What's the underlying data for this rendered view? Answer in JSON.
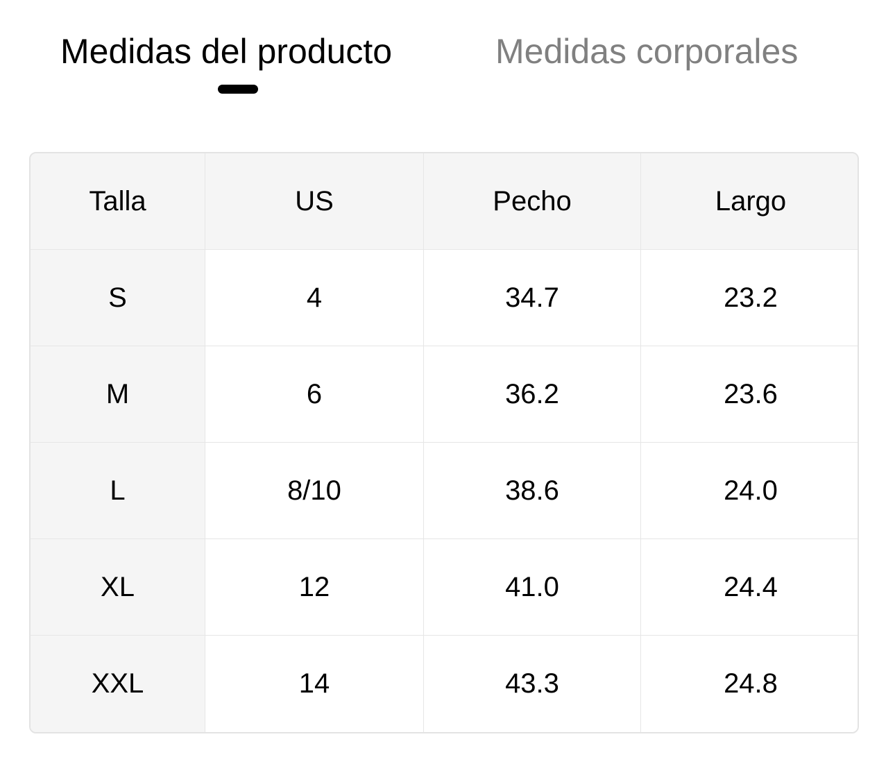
{
  "tabs": [
    {
      "label": "Medidas del producto",
      "active": true
    },
    {
      "label": "Medidas corporales",
      "active": false
    }
  ],
  "colors": {
    "active_tab": "#000000",
    "inactive_tab": "#808080",
    "header_bg": "#f5f5f5",
    "border": "#e6e6e6"
  },
  "table": {
    "headers": [
      "Talla",
      "US",
      "Pecho",
      "Largo"
    ],
    "rows": [
      [
        "S",
        "4",
        "34.7",
        "23.2"
      ],
      [
        "M",
        "6",
        "36.2",
        "23.6"
      ],
      [
        "L",
        "8/10",
        "38.6",
        "24.0"
      ],
      [
        "XL",
        "12",
        "41.0",
        "24.4"
      ],
      [
        "XXL",
        "14",
        "43.3",
        "24.8"
      ]
    ]
  }
}
